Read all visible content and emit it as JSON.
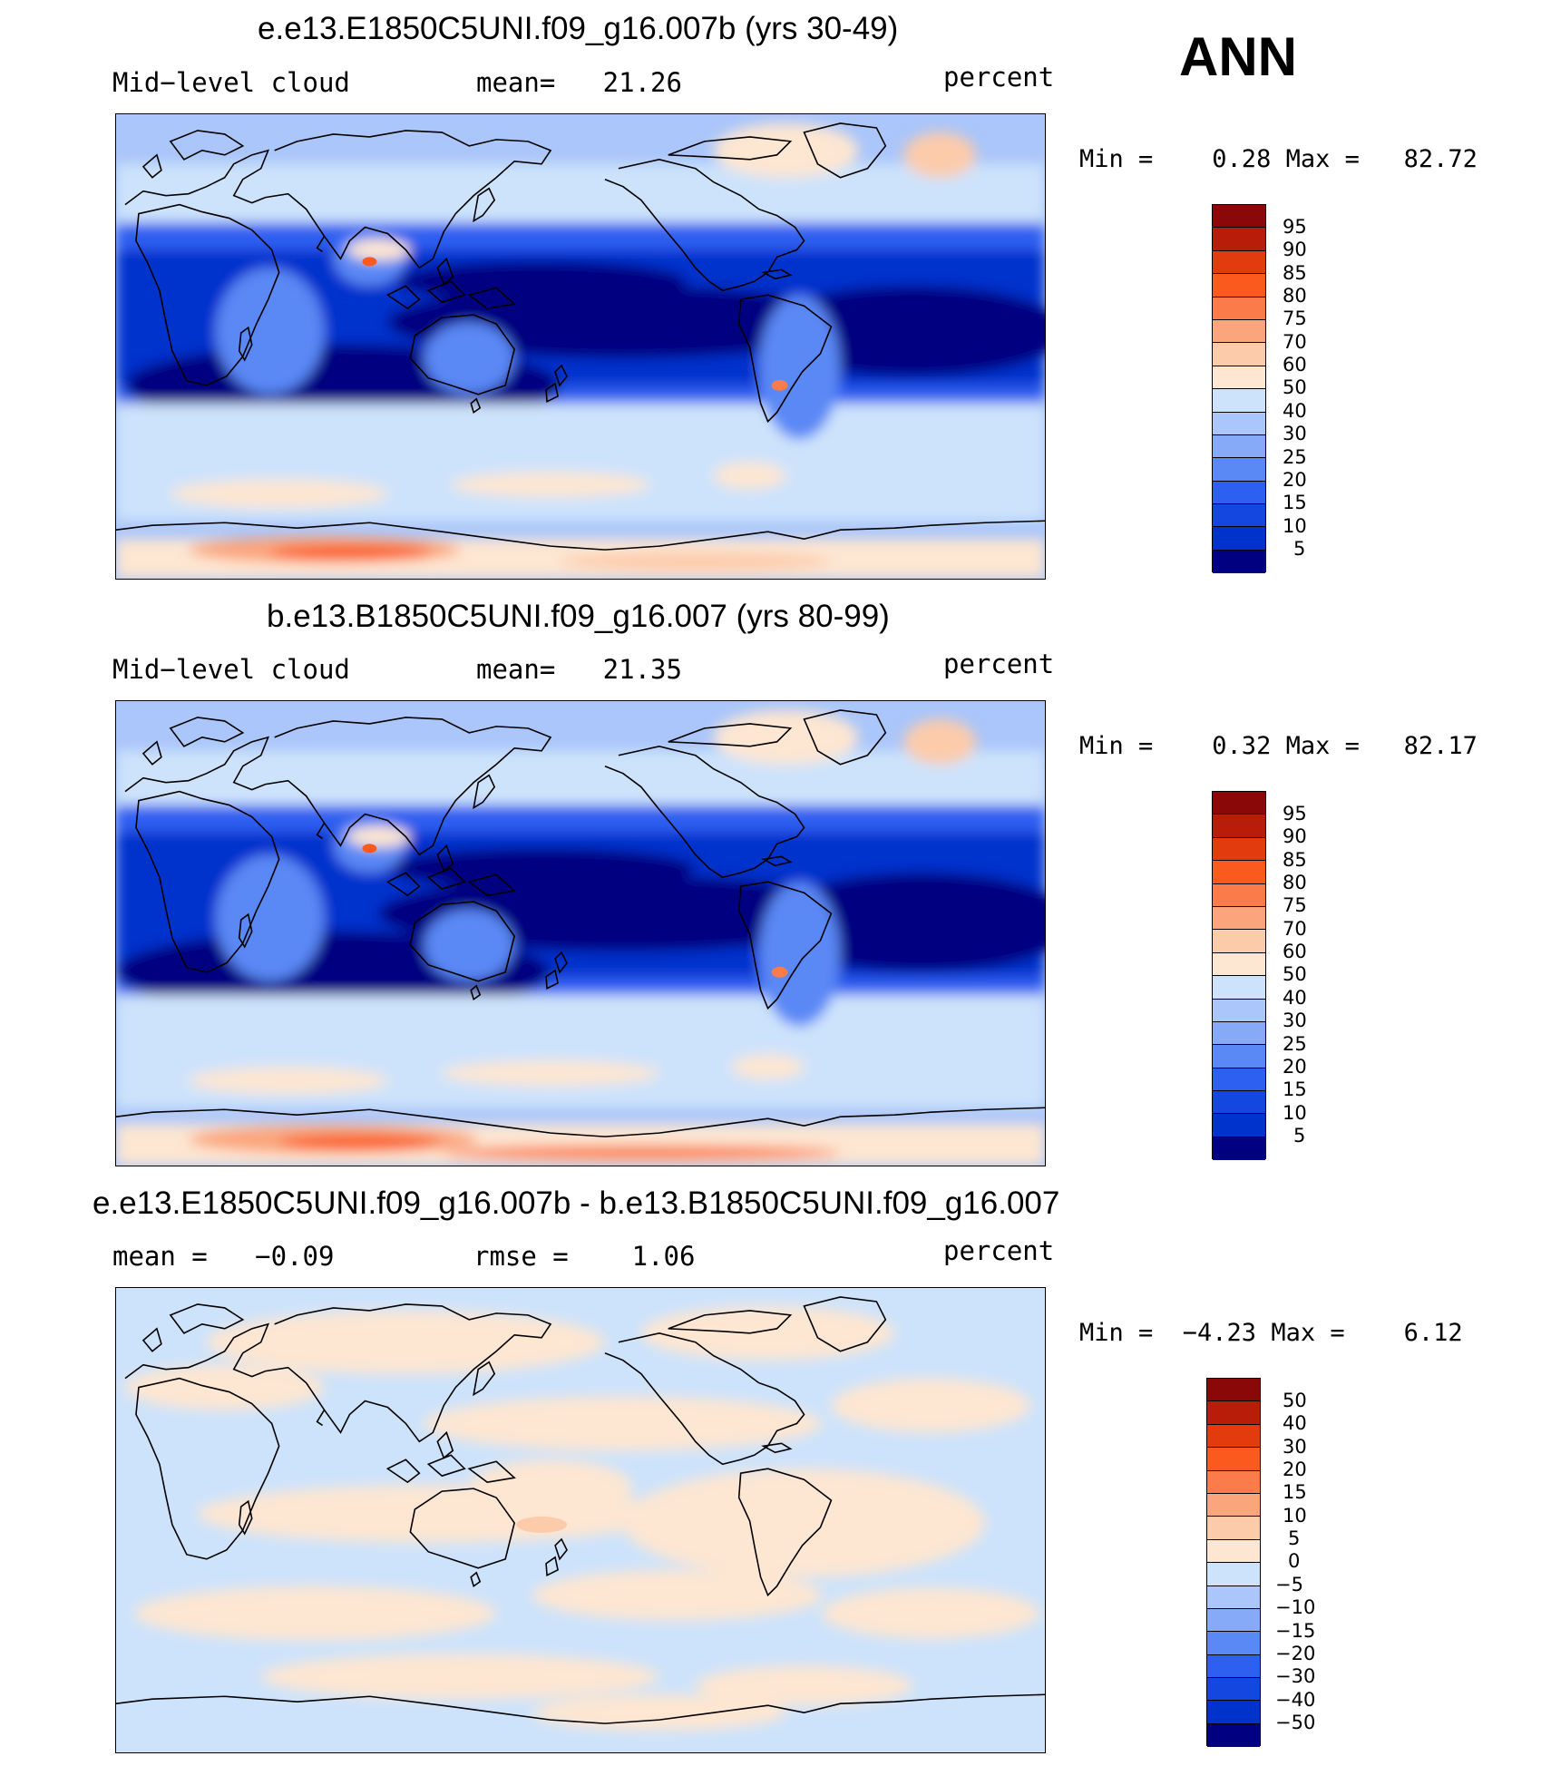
{
  "season": "ANN",
  "colors": {
    "abs_scale": [
      "#000080",
      "#0020b0",
      "#0033cc",
      "#1446e0",
      "#2d5ff0",
      "#5a88f5",
      "#86aaf7",
      "#aac6fa",
      "#cde3fb",
      "#fde6d2",
      "#fccbaa",
      "#fba57c",
      "#fb7c4a",
      "#fa5a1e",
      "#e23b0e",
      "#b81d0a",
      "#8a0808"
    ],
    "diff_scale": [
      "#000080",
      "#0020b0",
      "#0033cc",
      "#1446e0",
      "#2d5ff0",
      "#5a88f5",
      "#86aaf7",
      "#aac6fa",
      "#cde3fb",
      "#fde6d2",
      "#fccbaa",
      "#fba57c",
      "#fb7c4a",
      "#fa5a1e",
      "#e23b0e",
      "#b81d0a",
      "#8a0808"
    ],
    "coastline": "#000000"
  },
  "chart_data": [
    {
      "type": "heatmap",
      "title": "e.e13.E1850C5UNI.f09_g16.007b (yrs 30-49)",
      "variable": "Mid−level cloud",
      "stat": "mean=   21.26",
      "units": "percent",
      "minmax": "Min =    0.28 Max =   82.72",
      "min": 0.28,
      "max": 82.72,
      "mean": 21.26,
      "levels": [
        "95",
        "90",
        "85",
        "80",
        "75",
        "70",
        "60",
        "50",
        "40",
        "30",
        "25",
        "20",
        "15",
        "10",
        "5"
      ]
    },
    {
      "type": "heatmap",
      "title": "b.e13.B1850C5UNI.f09_g16.007 (yrs 80-99)",
      "variable": "Mid−level cloud",
      "stat": "mean=   21.35",
      "units": "percent",
      "minmax": "Min =    0.32 Max =   82.17",
      "min": 0.32,
      "max": 82.17,
      "mean": 21.35,
      "levels": [
        "95",
        "90",
        "85",
        "80",
        "75",
        "70",
        "60",
        "50",
        "40",
        "30",
        "25",
        "20",
        "15",
        "10",
        "5"
      ]
    },
    {
      "type": "heatmap",
      "title": "e.e13.E1850C5UNI.f09_g16.007b - b.e13.B1850C5UNI.f09_g16.007",
      "stat": "mean =   −0.09",
      "stat2": "rmse =    1.06",
      "units": "percent",
      "minmax": "Min =  −4.23 Max =    6.12",
      "min": -4.23,
      "max": 6.12,
      "mean": -0.09,
      "rmse": 1.06,
      "levels": [
        "50",
        "40",
        "30",
        "20",
        "15",
        "10",
        "5",
        "0",
        "−5",
        "−10",
        "−15",
        "−20",
        "−30",
        "−40",
        "−50"
      ]
    }
  ]
}
